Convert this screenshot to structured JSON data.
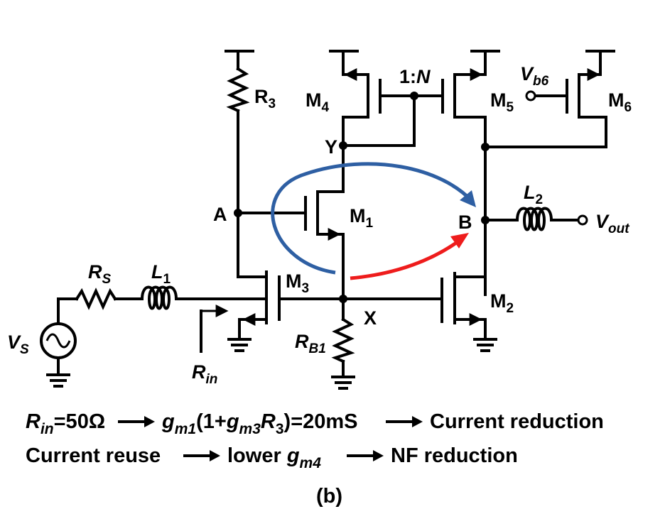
{
  "labels": {
    "r3": "R",
    "r3_sub": "3",
    "m4": "M",
    "m4_sub": "4",
    "ratio": "1:",
    "ratio_n": "N",
    "m5": "M",
    "m5_sub": "5",
    "vb6": "V",
    "vb6_sub": "b6",
    "m6": "M",
    "m6_sub": "6",
    "node_y": "Y",
    "node_a": "A",
    "m1": "M",
    "m1_sub": "1",
    "node_b": "B",
    "l2": "L",
    "l2_sub": "2",
    "vout": "V",
    "vout_sub": "out",
    "rs": "R",
    "rs_sub": "S",
    "l1": "L",
    "l1_sub": "1",
    "m3": "M",
    "m3_sub": "3",
    "m2": "M",
    "m2_sub": "2",
    "node_x": "X",
    "vs": "V",
    "vs_sub": "S",
    "rb1": "R",
    "rb1_sub": "B1",
    "rin": "R",
    "rin_sub": "in"
  },
  "equations": {
    "line1": {
      "rin": "R",
      "rin_sub": "in",
      "rin_val": "=50Ω",
      "gm1": "g",
      "gm1_sub": "m1",
      "paren_open": "(1+",
      "gm3": "g",
      "gm3_sub": "m3",
      "r3": "R",
      "r3_sub": "3",
      "gm_val": ")=20mS",
      "result": "Current reduction"
    },
    "line2": {
      "start": "Current reuse",
      "mid": "lower ",
      "gm4": "g",
      "gm4_sub": "m4",
      "result": "NF reduction"
    }
  },
  "caption": "(b)",
  "colors": {
    "blue_arrow": "#2e5fa3",
    "red_arrow": "#ee1c1c",
    "wire": "#000000"
  }
}
